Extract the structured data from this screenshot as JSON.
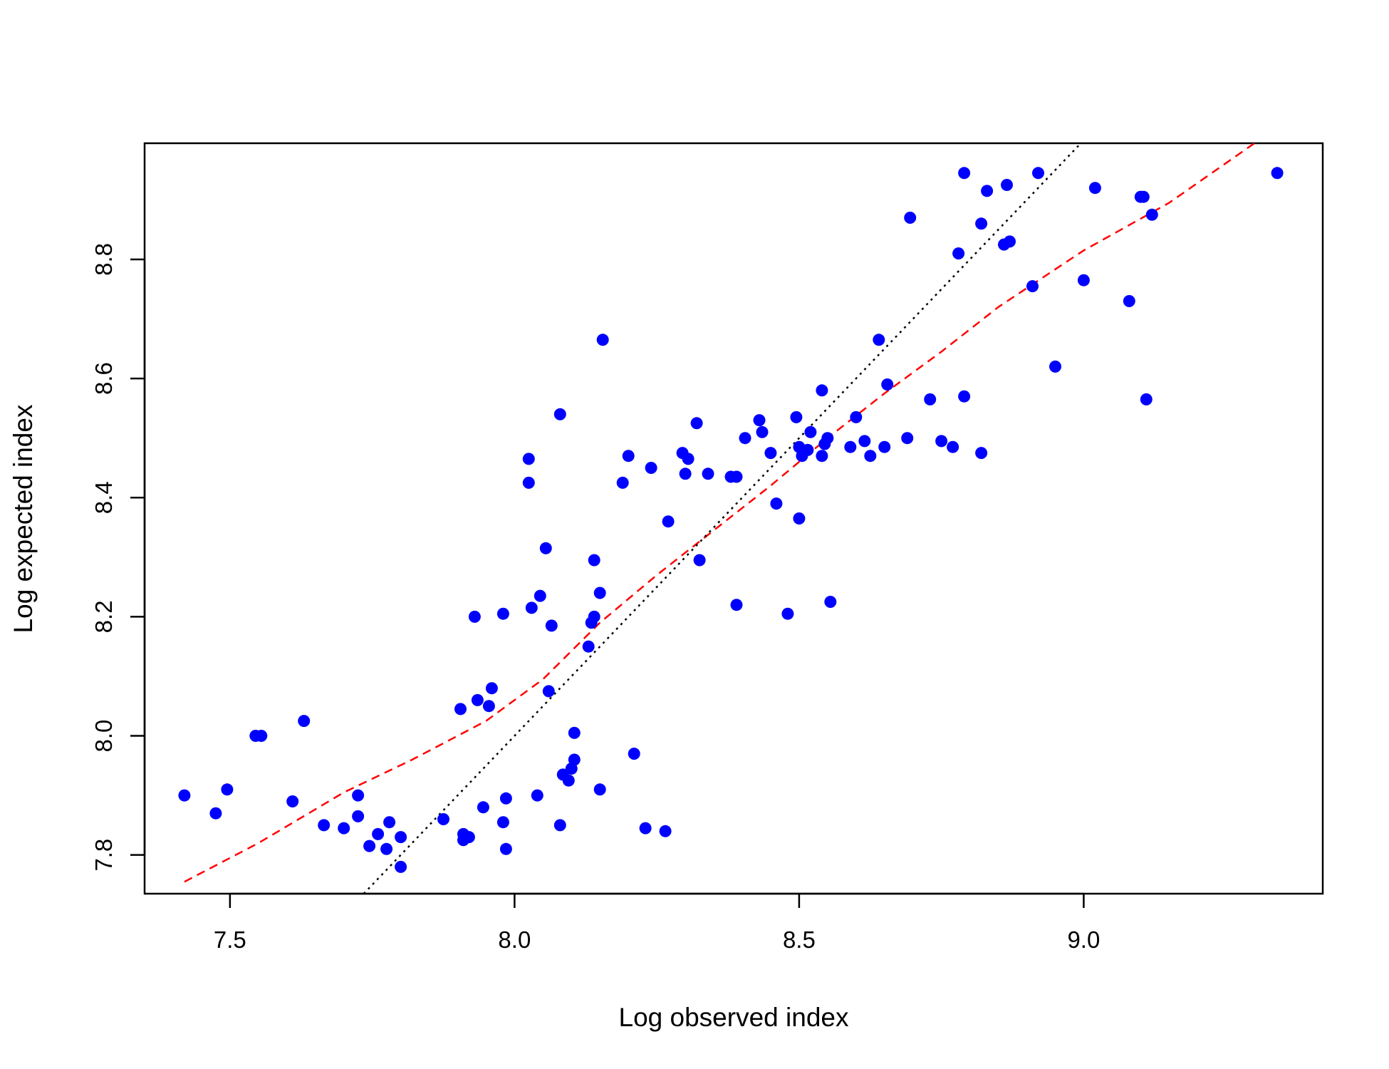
{
  "chart_data": {
    "type": "scatter",
    "xlabel": "Log observed index",
    "ylabel": "Log expected index",
    "xlim": [
      7.35,
      9.42
    ],
    "ylim": [
      7.735,
      8.995
    ],
    "xticks": [
      7.5,
      8.0,
      8.5,
      9.0
    ],
    "xtick_labels": [
      "7.5",
      "8.0",
      "8.5",
      "9.0"
    ],
    "yticks": [
      7.8,
      8.0,
      8.2,
      8.4,
      8.6,
      8.8
    ],
    "ytick_labels": [
      "7.8",
      "8.0",
      "8.2",
      "8.4",
      "8.6",
      "8.8"
    ],
    "grid": false,
    "legend": "none",
    "colors": {
      "points": "#0000ff",
      "smooth": "#ff0000",
      "identity": "#000000"
    },
    "points": [
      [
        7.42,
        7.9
      ],
      [
        7.475,
        7.87
      ],
      [
        7.495,
        7.91
      ],
      [
        7.545,
        8.0
      ],
      [
        7.555,
        8.0
      ],
      [
        7.61,
        7.89
      ],
      [
        7.63,
        8.025
      ],
      [
        7.665,
        7.85
      ],
      [
        7.7,
        7.845
      ],
      [
        7.725,
        7.9
      ],
      [
        7.725,
        7.865
      ],
      [
        7.745,
        7.815
      ],
      [
        7.76,
        7.835
      ],
      [
        7.775,
        7.81
      ],
      [
        7.78,
        7.855
      ],
      [
        7.8,
        7.78
      ],
      [
        7.8,
        7.83
      ],
      [
        7.875,
        7.86
      ],
      [
        7.905,
        8.045
      ],
      [
        7.91,
        7.825
      ],
      [
        7.91,
        7.835
      ],
      [
        7.92,
        7.83
      ],
      [
        7.93,
        8.2
      ],
      [
        7.935,
        8.06
      ],
      [
        7.945,
        7.88
      ],
      [
        7.955,
        8.05
      ],
      [
        7.96,
        8.08
      ],
      [
        7.98,
        7.855
      ],
      [
        7.98,
        8.205
      ],
      [
        7.985,
        7.895
      ],
      [
        7.985,
        7.81
      ],
      [
        8.025,
        8.465
      ],
      [
        8.025,
        8.425
      ],
      [
        8.03,
        8.215
      ],
      [
        8.04,
        7.9
      ],
      [
        8.045,
        8.235
      ],
      [
        8.055,
        8.315
      ],
      [
        8.06,
        8.075
      ],
      [
        8.065,
        8.185
      ],
      [
        8.08,
        8.54
      ],
      [
        8.08,
        7.85
      ],
      [
        8.085,
        7.935
      ],
      [
        8.095,
        7.925
      ],
      [
        8.1,
        7.945
      ],
      [
        8.105,
        8.005
      ],
      [
        8.105,
        7.96
      ],
      [
        8.13,
        8.15
      ],
      [
        8.135,
        8.19
      ],
      [
        8.14,
        8.2
      ],
      [
        8.14,
        8.295
      ],
      [
        8.15,
        8.24
      ],
      [
        8.15,
        7.91
      ],
      [
        8.155,
        8.665
      ],
      [
        8.19,
        8.425
      ],
      [
        8.2,
        8.47
      ],
      [
        8.21,
        7.97
      ],
      [
        8.23,
        7.845
      ],
      [
        8.24,
        8.45
      ],
      [
        8.265,
        7.84
      ],
      [
        8.27,
        8.36
      ],
      [
        8.295,
        8.475
      ],
      [
        8.3,
        8.44
      ],
      [
        8.305,
        8.465
      ],
      [
        8.32,
        8.525
      ],
      [
        8.325,
        8.295
      ],
      [
        8.34,
        8.44
      ],
      [
        8.38,
        8.435
      ],
      [
        8.39,
        8.22
      ],
      [
        8.39,
        8.435
      ],
      [
        8.405,
        8.5
      ],
      [
        8.43,
        8.53
      ],
      [
        8.435,
        8.51
      ],
      [
        8.45,
        8.475
      ],
      [
        8.46,
        8.39
      ],
      [
        8.48,
        8.205
      ],
      [
        8.495,
        8.535
      ],
      [
        8.5,
        8.365
      ],
      [
        8.5,
        8.485
      ],
      [
        8.505,
        8.47
      ],
      [
        8.515,
        8.48
      ],
      [
        8.52,
        8.51
      ],
      [
        8.54,
        8.58
      ],
      [
        8.54,
        8.47
      ],
      [
        8.545,
        8.49
      ],
      [
        8.55,
        8.5
      ],
      [
        8.555,
        8.225
      ],
      [
        8.59,
        8.485
      ],
      [
        8.6,
        8.535
      ],
      [
        8.615,
        8.495
      ],
      [
        8.625,
        8.47
      ],
      [
        8.64,
        8.665
      ],
      [
        8.65,
        8.485
      ],
      [
        8.655,
        8.59
      ],
      [
        8.69,
        8.5
      ],
      [
        8.695,
        8.87
      ],
      [
        8.73,
        8.565
      ],
      [
        8.75,
        8.495
      ],
      [
        8.77,
        8.485
      ],
      [
        8.78,
        8.81
      ],
      [
        8.79,
        8.57
      ],
      [
        8.79,
        8.945
      ],
      [
        8.82,
        8.475
      ],
      [
        8.82,
        8.86
      ],
      [
        8.83,
        8.915
      ],
      [
        8.86,
        8.825
      ],
      [
        8.865,
        8.925
      ],
      [
        8.87,
        8.83
      ],
      [
        8.91,
        8.755
      ],
      [
        8.92,
        8.945
      ],
      [
        8.95,
        8.62
      ],
      [
        9.0,
        8.765
      ],
      [
        9.02,
        8.92
      ],
      [
        9.08,
        8.73
      ],
      [
        9.1,
        8.905
      ],
      [
        9.105,
        8.905
      ],
      [
        9.11,
        8.565
      ],
      [
        9.12,
        8.875
      ],
      [
        9.34,
        8.945
      ]
    ],
    "smooth_line": [
      [
        7.42,
        7.755
      ],
      [
        7.55,
        7.82
      ],
      [
        7.7,
        7.905
      ],
      [
        7.82,
        7.96
      ],
      [
        7.95,
        8.025
      ],
      [
        8.05,
        8.095
      ],
      [
        8.15,
        8.19
      ],
      [
        8.25,
        8.27
      ],
      [
        8.35,
        8.345
      ],
      [
        8.45,
        8.42
      ],
      [
        8.55,
        8.5
      ],
      [
        8.65,
        8.575
      ],
      [
        8.75,
        8.645
      ],
      [
        8.85,
        8.72
      ],
      [
        9.0,
        8.815
      ],
      [
        9.15,
        8.895
      ],
      [
        9.3,
        8.995
      ]
    ],
    "identity_line": [
      [
        7.735,
        7.735
      ],
      [
        8.995,
        8.995
      ]
    ]
  }
}
